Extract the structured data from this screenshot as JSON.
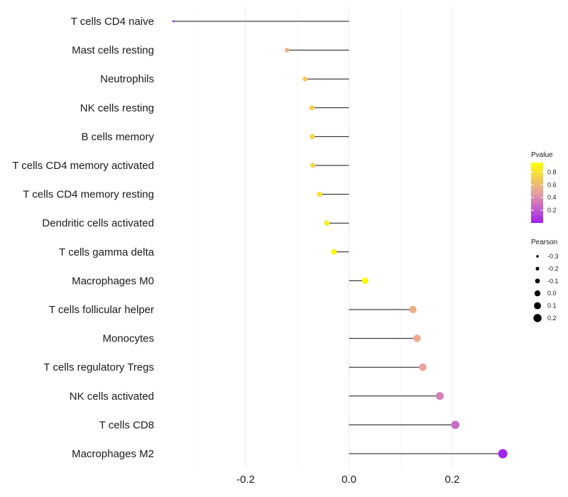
{
  "chart_data": {
    "type": "lollipop",
    "title": "",
    "xlabel": "",
    "ylabel": "",
    "xlim": [
      -0.34,
      0.3
    ],
    "xticks": [
      -0.2,
      0.0,
      0.2
    ],
    "xtick_labels": [
      "-0.2",
      "0.0",
      "0.2"
    ],
    "grid": true,
    "categories": [
      "T cells CD4 naive",
      "Mast cells resting",
      "Neutrophils",
      "NK cells resting",
      "B cells memory",
      "T cells CD4 memory activated",
      "T cells CD4 memory resting",
      "Dendritic cells activated",
      "T cells gamma delta",
      "Macrophages M0",
      "T cells follicular helper",
      "Monocytes",
      "T cells regulatory  Tregs",
      "NK cells activated",
      "T cells CD8",
      "Macrophages M2"
    ],
    "pearson": [
      -0.34,
      -0.12,
      -0.085,
      -0.072,
      -0.071,
      -0.07,
      -0.057,
      -0.043,
      -0.029,
      0.031,
      0.124,
      0.132,
      0.143,
      0.176,
      0.206,
      0.298
    ],
    "pvalue": [
      0.05,
      0.55,
      0.68,
      0.73,
      0.74,
      0.74,
      0.8,
      0.85,
      0.9,
      0.93,
      0.55,
      0.52,
      0.48,
      0.35,
      0.28,
      0.02
    ],
    "legend_color": {
      "title": "Pvalue",
      "ticks": [
        0.8,
        0.6,
        0.4,
        0.2
      ],
      "tick_labels": [
        "0.8",
        "0.6",
        "0.4",
        "0.2"
      ],
      "range": [
        0.0,
        0.95
      ],
      "low_color": "#a020f0",
      "mid_color": "#e8a0a0",
      "high_color": "#ffff00"
    },
    "legend_size": {
      "title": "Pearson",
      "values": [
        -0.3,
        -0.2,
        -0.1,
        0.0,
        0.1,
        0.2
      ],
      "labels": [
        "-0.3",
        "-0.2",
        "-0.1",
        "0.0",
        "0.1",
        "0.2"
      ]
    },
    "legend_position": "right"
  }
}
